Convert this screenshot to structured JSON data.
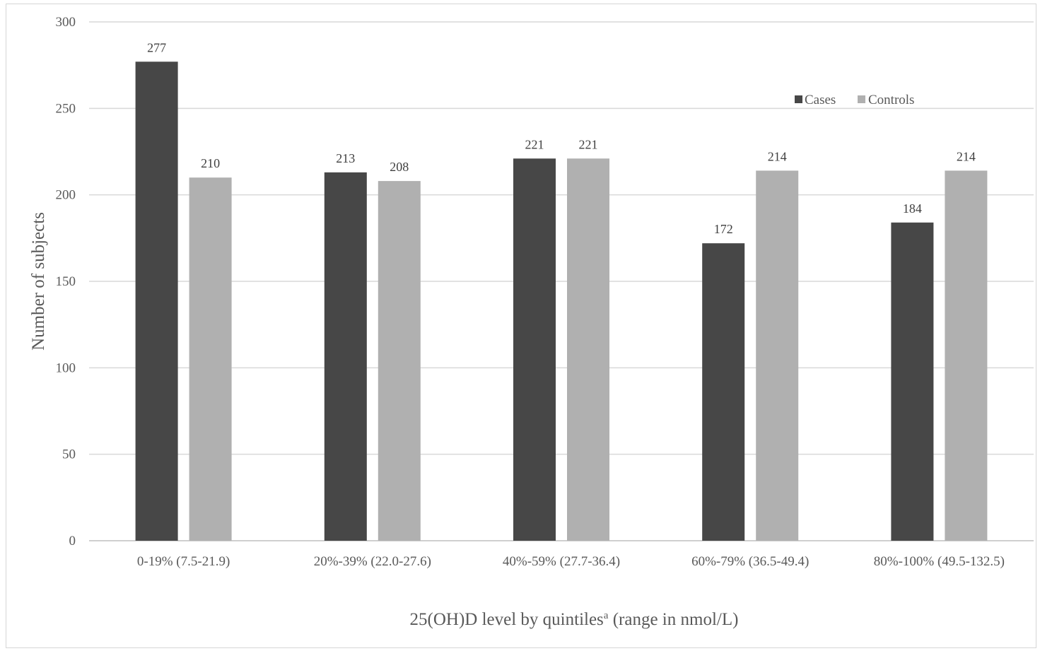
{
  "chart_data": {
    "type": "bar",
    "categories": [
      "0-19% (7.5-21.9)",
      "20%-39% (22.0-27.6)",
      "40%-59% (27.7-36.4)",
      "60%-79% (36.5-49.4)",
      "80%-100% (49.5-132.5)"
    ],
    "series": [
      {
        "name": "Cases",
        "color": "#474747",
        "values": [
          277,
          213,
          221,
          172,
          184
        ]
      },
      {
        "name": "Controls",
        "color": "#b0b0b0",
        "values": [
          210,
          208,
          221,
          214,
          214
        ]
      }
    ],
    "xlabel_main": "25(OH)D level by quintiles",
    "xlabel_sup": "a",
    "xlabel_tail": " (range in nmol/L)",
    "ylabel": "Number of subjects",
    "ylim": [
      0,
      300
    ],
    "yticks": [
      0,
      50,
      100,
      150,
      200,
      250,
      300
    ],
    "grid": true,
    "legend_position": "top-right"
  }
}
